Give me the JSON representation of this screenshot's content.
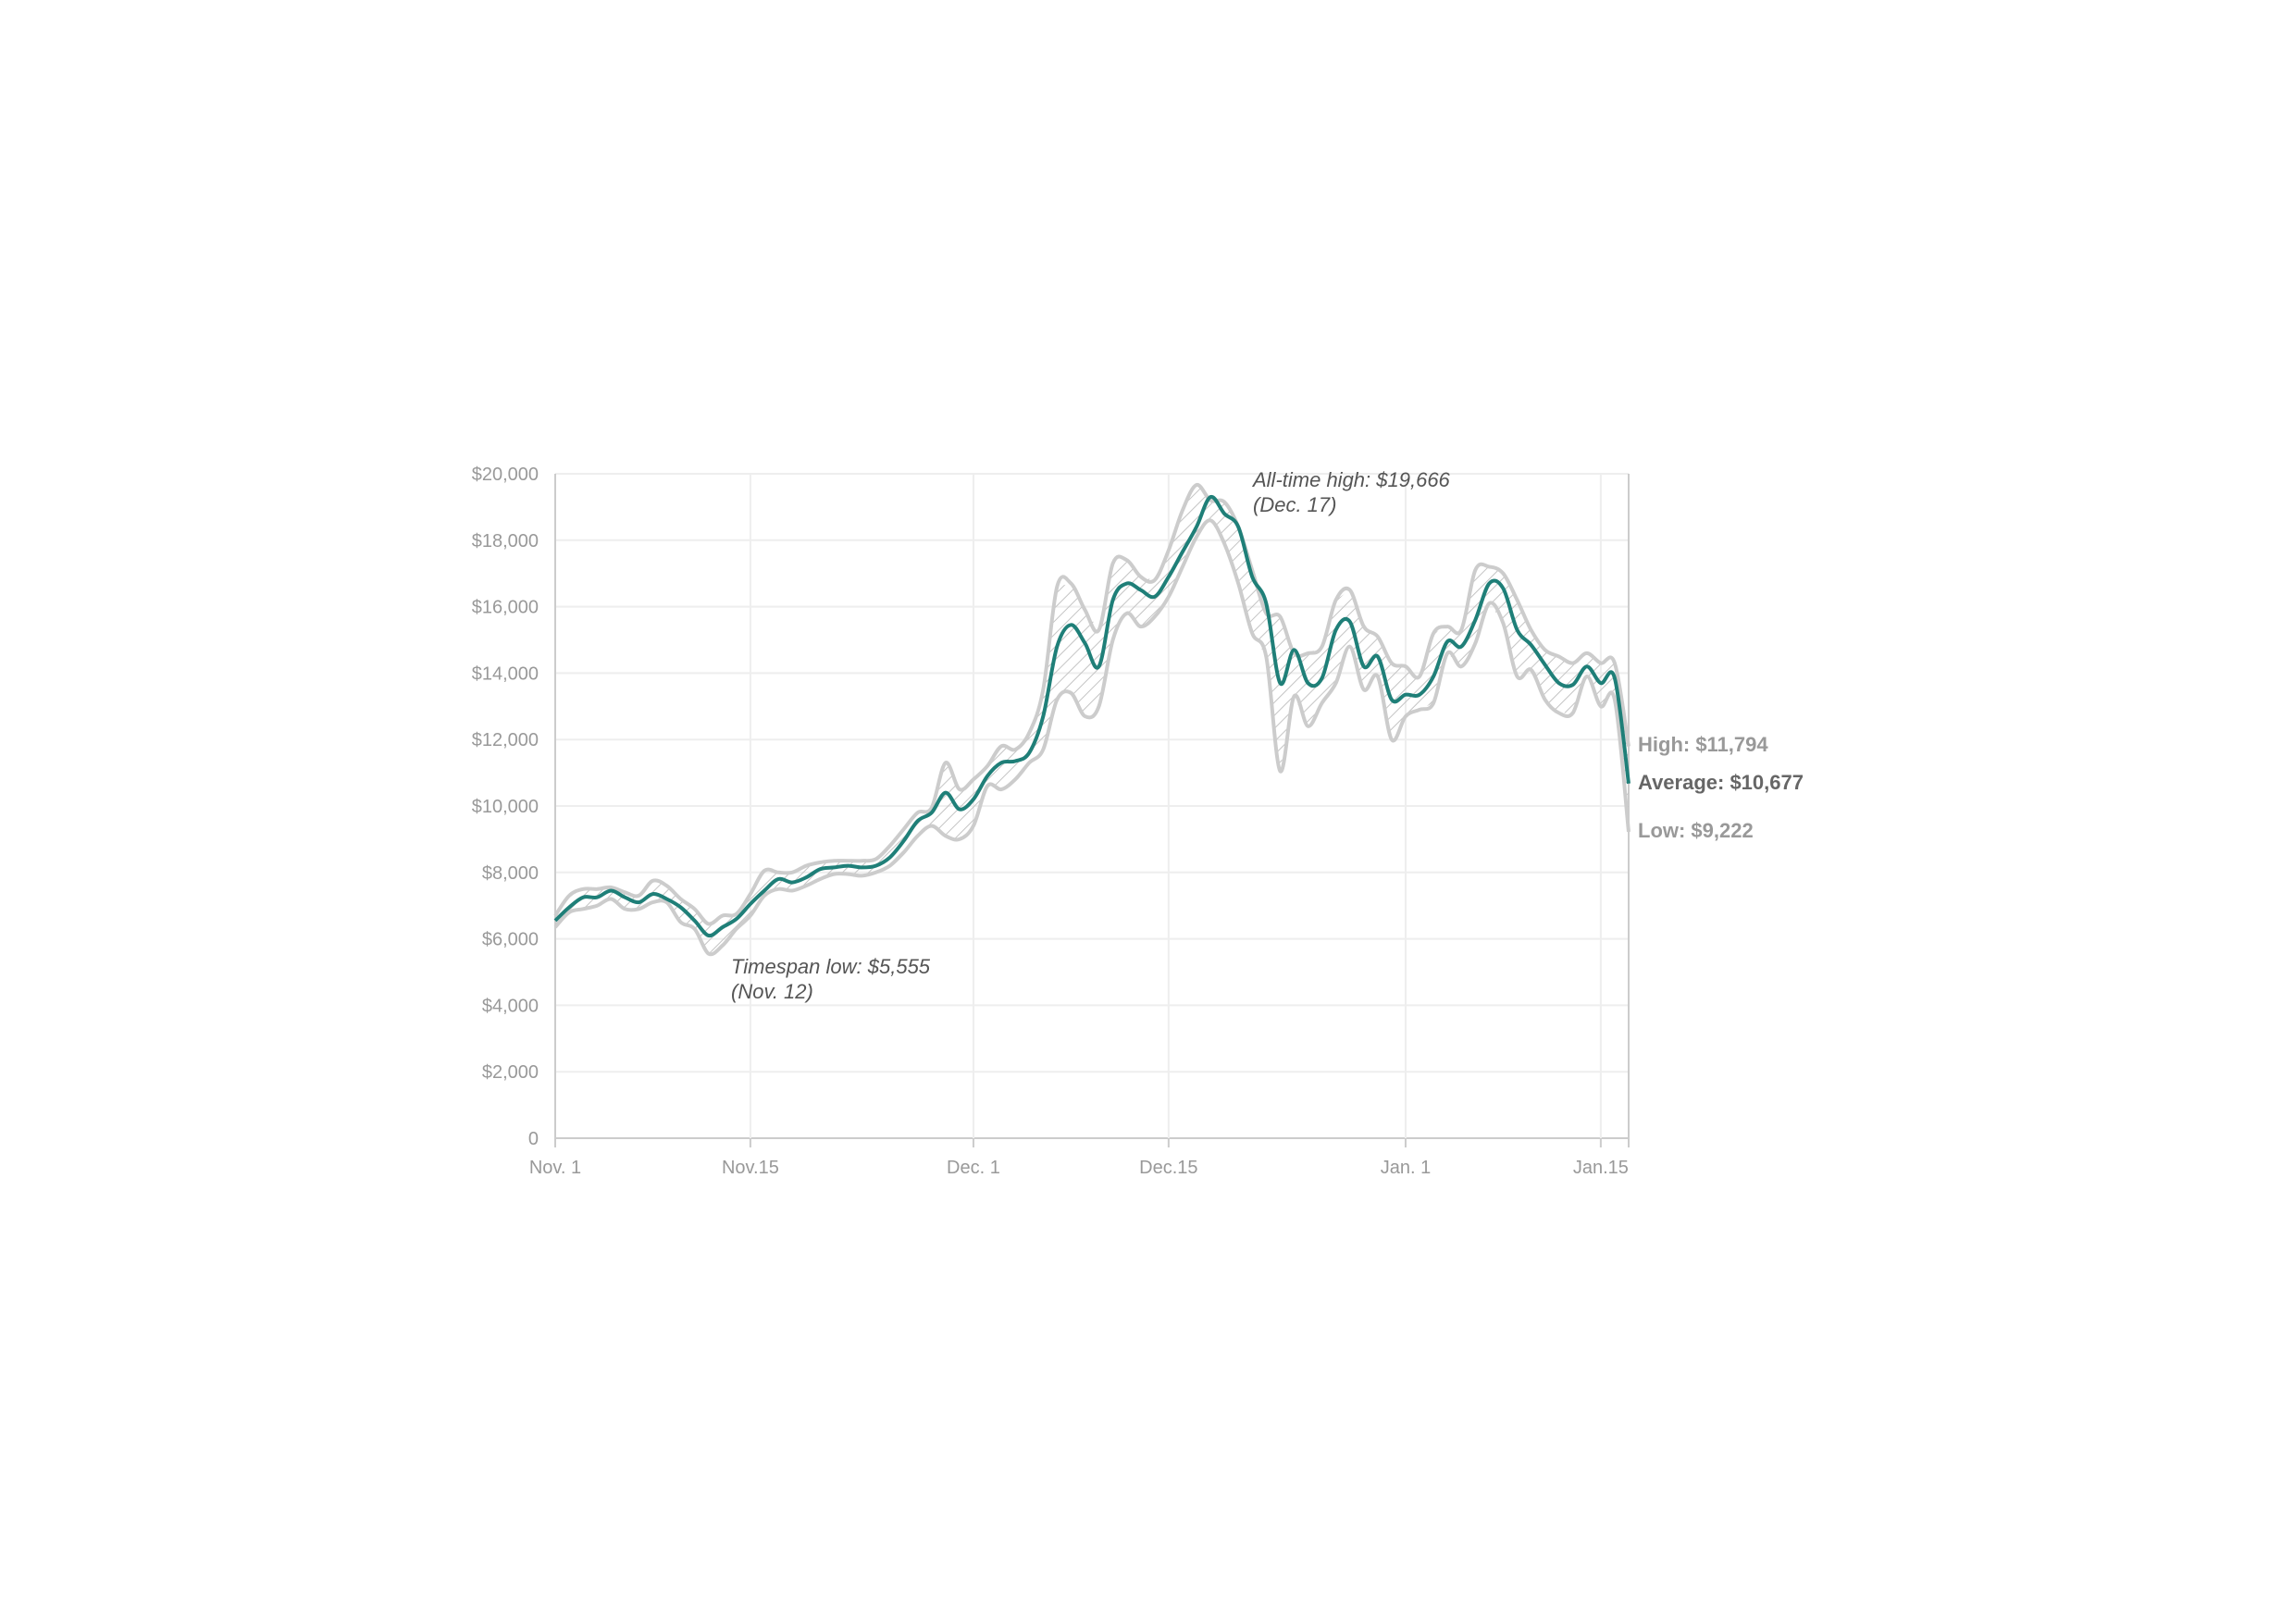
{
  "chart_data": {
    "type": "area",
    "title": "",
    "xlabel": "",
    "ylabel": "",
    "ylim": [
      0,
      20000
    ],
    "xlim_days": [
      0,
      77
    ],
    "y_ticks": [
      {
        "value": 0,
        "label": "0"
      },
      {
        "value": 2000,
        "label": "$2,000"
      },
      {
        "value": 4000,
        "label": "$4,000"
      },
      {
        "value": 6000,
        "label": "$6,000"
      },
      {
        "value": 8000,
        "label": "$8,000"
      },
      {
        "value": 10000,
        "label": "$10,000"
      },
      {
        "value": 12000,
        "label": "$12,000"
      },
      {
        "value": 14000,
        "label": "$14,000"
      },
      {
        "value": 16000,
        "label": "$16,000"
      },
      {
        "value": 18000,
        "label": "$18,000"
      },
      {
        "value": 20000,
        "label": "$20,000"
      }
    ],
    "x_ticks": [
      {
        "day": 0,
        "label": "Nov. 1"
      },
      {
        "day": 14,
        "label": "Nov.15"
      },
      {
        "day": 30,
        "label": "Dec. 1"
      },
      {
        "day": 44,
        "label": "Dec.15"
      },
      {
        "day": 61,
        "label": "Jan. 1"
      },
      {
        "day": 75,
        "label": "Jan.15"
      }
    ],
    "grid": true,
    "colors": {
      "average": "#1f7f78",
      "range": "#cccccc",
      "hatch": "#bbbbbb",
      "grid": "#eeeeee",
      "axis": "#cccccc"
    },
    "series": [
      {
        "key": "average",
        "values": [
          6550,
          6950,
          7250,
          7250,
          7450,
          7250,
          7100,
          7350,
          7200,
          6950,
          6550,
          6100,
          6350,
          6600,
          7050,
          7450,
          7800,
          7700,
          7850,
          8100,
          8150,
          8200,
          8150,
          8200,
          8450,
          8950,
          9550,
          9800,
          10400,
          9900,
          10200,
          10900,
          11300,
          11350,
          11600,
          12700,
          14800,
          15450,
          14900,
          14200,
          16200,
          16700,
          16500,
          16300,
          16900,
          17650,
          18400,
          19300,
          18800,
          18400,
          16900,
          16100,
          13700,
          14700,
          13700,
          13850,
          15300,
          15550,
          14200,
          14500,
          13200,
          13350,
          13350,
          13900,
          14950,
          14800,
          15600,
          16700,
          16550,
          15300,
          14850,
          14250,
          13700,
          13650,
          14200,
          13700,
          13850,
          10677
        ]
      },
      {
        "key": "high",
        "values": [
          6700,
          7300,
          7500,
          7500,
          7550,
          7400,
          7300,
          7750,
          7600,
          7200,
          6900,
          6450,
          6700,
          6750,
          7350,
          8050,
          8000,
          8000,
          8200,
          8300,
          8350,
          8350,
          8350,
          8400,
          8800,
          9300,
          9800,
          9950,
          11300,
          10500,
          10800,
          11200,
          11800,
          11700,
          12200,
          13500,
          16600,
          16700,
          15900,
          15300,
          17300,
          17400,
          16900,
          16800,
          17700,
          18900,
          19666,
          19200,
          19150,
          18400,
          17100,
          15800,
          15700,
          14600,
          14600,
          14800,
          16200,
          16500,
          15400,
          15100,
          14300,
          14200,
          13900,
          15200,
          15400,
          15300,
          17100,
          17200,
          17000,
          16200,
          15300,
          14700,
          14500,
          14300,
          14600,
          14300,
          14300,
          11794
        ]
      },
      {
        "key": "low",
        "values": [
          6350,
          6800,
          6900,
          7000,
          7200,
          6900,
          6900,
          7100,
          7100,
          6500,
          6300,
          5555,
          5800,
          6300,
          6700,
          7300,
          7500,
          7450,
          7600,
          7800,
          7950,
          7950,
          7900,
          8000,
          8200,
          8600,
          9100,
          9400,
          9100,
          9000,
          9400,
          10600,
          10500,
          10800,
          11300,
          11700,
          13200,
          13400,
          12700,
          13000,
          15000,
          15800,
          15400,
          15700,
          16300,
          17200,
          18100,
          18600,
          17900,
          16700,
          15200,
          14500,
          11050,
          13300,
          12400,
          13100,
          13700,
          14800,
          13500,
          13900,
          12000,
          12700,
          12900,
          13100,
          14600,
          14200,
          14900,
          16100,
          15500,
          13900,
          14100,
          13200,
          12800,
          12800,
          13900,
          13000,
          13200,
          9222
        ]
      }
    ],
    "end_labels": {
      "high": "High: $11,794",
      "average": "Average: $10,677",
      "low": "Low: $9,222"
    },
    "annotations": {
      "ath_line1": "All-time high: $19,666",
      "ath_line2": "(Dec. 17)",
      "low_line1": "Timespan low: $5,555",
      "low_line2": "(Nov. 12)"
    }
  }
}
